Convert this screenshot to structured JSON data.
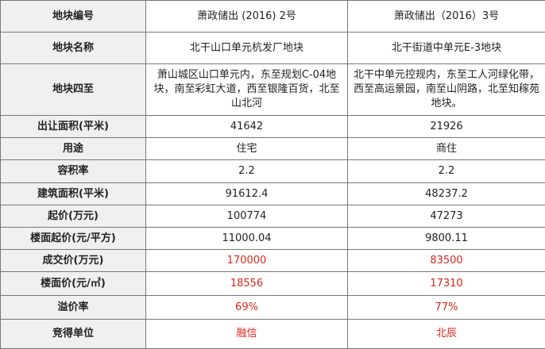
{
  "table": {
    "rows": [
      [
        "地块编号",
        "萧政储出 (2016) 2号",
        "萧政储出（2016）3号"
      ],
      [
        "地块名称",
        "北干山口单元杭发厂地块",
        "北干街道中单元E-3地块"
      ],
      [
        "地块四至",
        "萧山城区山口单元内，东至规划C-04地块，南至彩虹大道，西至银隆百货，北至山北河",
        "北干中单元控规内，东至工人河绿化带，西至高运景园，南至山阴路，北至知稼苑地块。"
      ],
      [
        "出让面积(平米)",
        "41642",
        "21926"
      ],
      [
        "用途",
        "住宅",
        "商住"
      ],
      [
        "容积率",
        "2.2",
        "2.2"
      ],
      [
        "建筑面积(平米)",
        "91612.4",
        "48237.2"
      ],
      [
        "起价(万元)",
        "100774",
        "47273"
      ],
      [
        "楼面起价(元/平方)",
        "11000.04",
        "9800.11"
      ],
      [
        "成交价(万元)",
        "170000",
        "83500"
      ],
      [
        "楼面价(元/㎡)",
        "18556",
        "17310"
      ],
      [
        "溢价率",
        "69%",
        "77%"
      ],
      [
        "竞得单位",
        "融信",
        "北辰"
      ]
    ]
  }
}
